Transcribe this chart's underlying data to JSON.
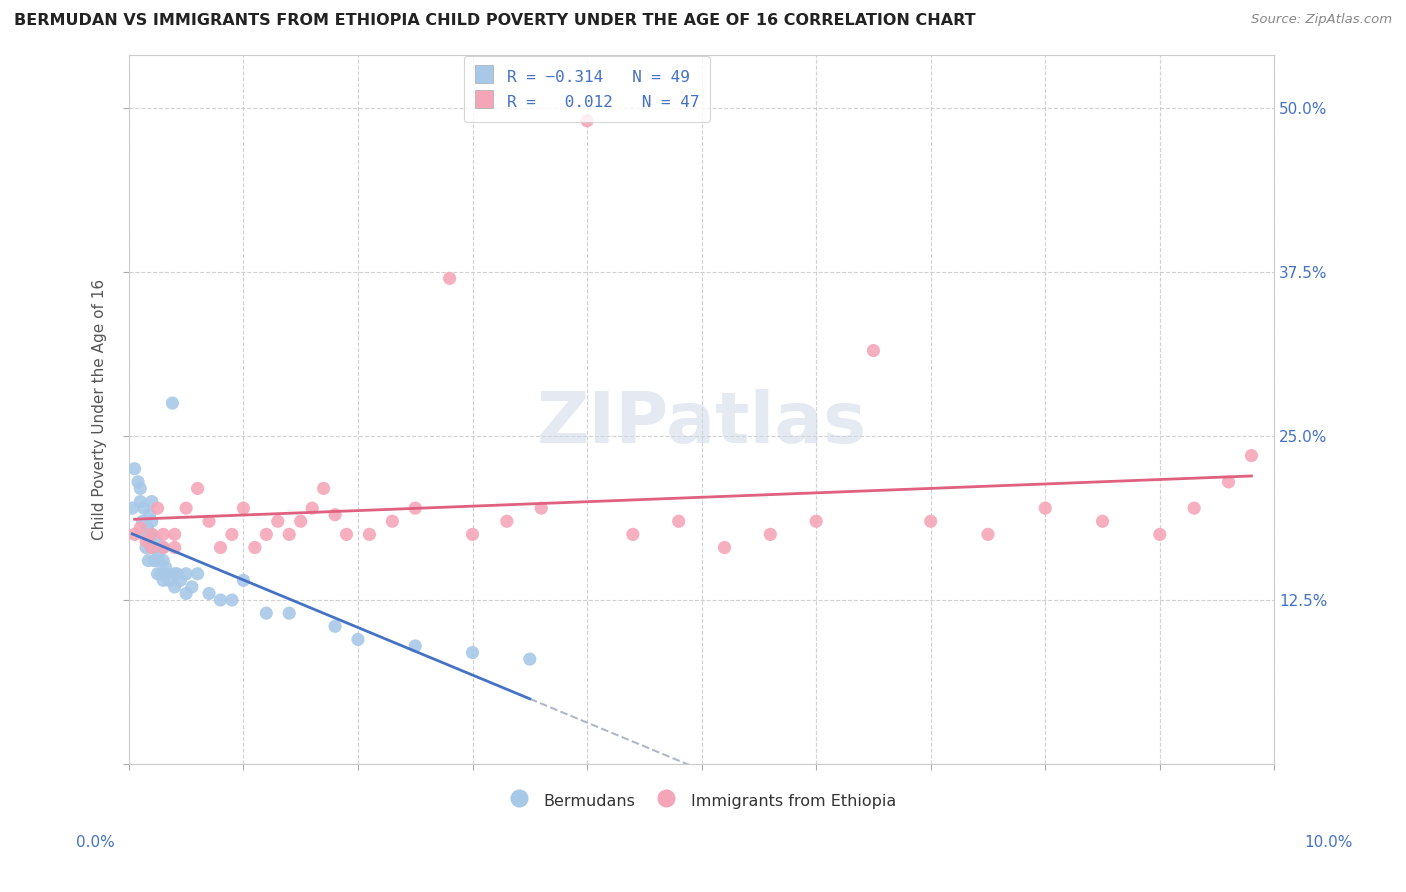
{
  "title": "BERMUDAN VS IMMIGRANTS FROM ETHIOPIA CHILD POVERTY UNDER THE AGE OF 16 CORRELATION CHART",
  "source": "Source: ZipAtlas.com",
  "ylabel": "Child Poverty Under the Age of 16",
  "y_tick_values": [
    0.0,
    0.125,
    0.25,
    0.375,
    0.5
  ],
  "y_tick_labels": [
    "",
    "12.5%",
    "25.0%",
    "37.5%",
    "50.0%"
  ],
  "x_range": [
    0.0,
    0.1
  ],
  "y_range": [
    0.0,
    0.54
  ],
  "color_blue": "#a8c8e8",
  "color_pink": "#f4a6b8",
  "line_color_blue": "#4472c4",
  "line_color_pink": "#e06080",
  "line_color_dashed": "#b0b8c8",
  "background_color": "#ffffff",
  "blue_x": [
    0.0003,
    0.0005,
    0.0008,
    0.001,
    0.001,
    0.0012,
    0.0013,
    0.0015,
    0.0015,
    0.0016,
    0.0017,
    0.0018,
    0.0019,
    0.002,
    0.002,
    0.002,
    0.0022,
    0.0022,
    0.0023,
    0.0025,
    0.0025,
    0.0026,
    0.0028,
    0.003,
    0.003,
    0.003,
    0.0032,
    0.0032,
    0.0035,
    0.0038,
    0.004,
    0.004,
    0.0042,
    0.0045,
    0.005,
    0.005,
    0.0055,
    0.006,
    0.007,
    0.008,
    0.009,
    0.01,
    0.012,
    0.014,
    0.018,
    0.02,
    0.025,
    0.03,
    0.035
  ],
  "blue_y": [
    0.195,
    0.225,
    0.215,
    0.2,
    0.21,
    0.185,
    0.195,
    0.175,
    0.165,
    0.18,
    0.155,
    0.19,
    0.165,
    0.2,
    0.185,
    0.175,
    0.165,
    0.155,
    0.17,
    0.155,
    0.145,
    0.16,
    0.145,
    0.165,
    0.155,
    0.14,
    0.15,
    0.145,
    0.14,
    0.275,
    0.145,
    0.135,
    0.145,
    0.14,
    0.13,
    0.145,
    0.135,
    0.145,
    0.13,
    0.125,
    0.125,
    0.14,
    0.115,
    0.115,
    0.105,
    0.095,
    0.09,
    0.085,
    0.08
  ],
  "pink_x": [
    0.0005,
    0.001,
    0.0015,
    0.002,
    0.002,
    0.0025,
    0.003,
    0.003,
    0.004,
    0.004,
    0.005,
    0.006,
    0.007,
    0.008,
    0.009,
    0.01,
    0.011,
    0.012,
    0.013,
    0.014,
    0.015,
    0.016,
    0.017,
    0.018,
    0.019,
    0.021,
    0.023,
    0.025,
    0.028,
    0.03,
    0.033,
    0.036,
    0.04,
    0.044,
    0.048,
    0.052,
    0.056,
    0.06,
    0.065,
    0.07,
    0.075,
    0.08,
    0.085,
    0.09,
    0.093,
    0.096,
    0.098
  ],
  "pink_y": [
    0.175,
    0.18,
    0.17,
    0.175,
    0.165,
    0.195,
    0.165,
    0.175,
    0.165,
    0.175,
    0.195,
    0.21,
    0.185,
    0.165,
    0.175,
    0.195,
    0.165,
    0.175,
    0.185,
    0.175,
    0.185,
    0.195,
    0.21,
    0.19,
    0.175,
    0.175,
    0.185,
    0.195,
    0.37,
    0.175,
    0.185,
    0.195,
    0.49,
    0.175,
    0.185,
    0.165,
    0.175,
    0.185,
    0.315,
    0.185,
    0.175,
    0.195,
    0.185,
    0.175,
    0.195,
    0.215,
    0.235
  ]
}
